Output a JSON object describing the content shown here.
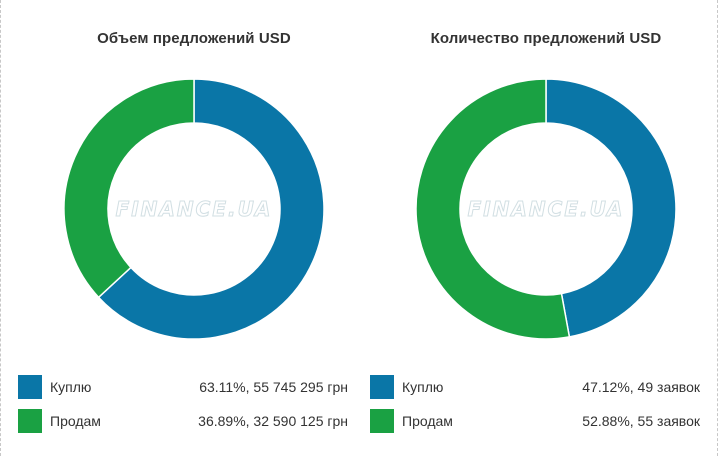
{
  "colors": {
    "buy": "#0a76a7",
    "sell": "#1aa143"
  },
  "watermark": "FINANCE.UA",
  "chart_data": [
    {
      "type": "pie",
      "title": "Объем предложений USD",
      "slices": [
        {
          "label": "Куплю",
          "percent": 63.11,
          "value_text": "63.11%, 55 745 295 грн",
          "color": "#0a76a7"
        },
        {
          "label": "Продам",
          "percent": 36.89,
          "value_text": "36.89%, 32 590 125 грн",
          "color": "#1aa143"
        }
      ]
    },
    {
      "type": "pie",
      "title": "Количество предложений USD",
      "slices": [
        {
          "label": "Куплю",
          "percent": 47.12,
          "value_text": "47.12%, 49 заявок",
          "color": "#0a76a7"
        },
        {
          "label": "Продам",
          "percent": 52.88,
          "value_text": "52.88%, 55 заявок",
          "color": "#1aa143"
        }
      ]
    }
  ]
}
